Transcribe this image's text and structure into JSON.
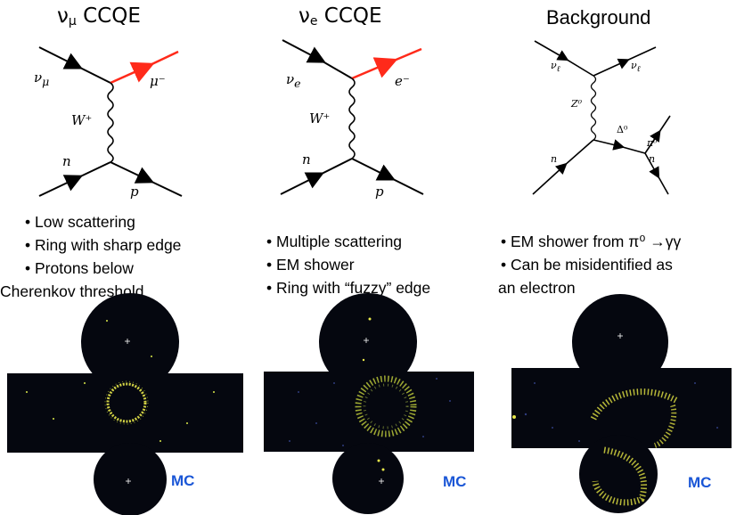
{
  "panels": [
    {
      "title_main": "ν",
      "title_sub": "μ",
      "title_rest": " CCQE",
      "labels": {
        "in_lepton": "ν",
        "in_lepton_sub": "μ",
        "out_lepton": "μ⁻",
        "boson": "W⁺",
        "in_nucleon": "n",
        "out_nucleon": "p"
      },
      "bullets": [
        "Low scattering",
        "Ring with sharp edge",
        "Protons below",
        "Cherenkov threshold"
      ],
      "mc": "MC"
    },
    {
      "title_main": "ν",
      "title_sub": "e",
      "title_rest": " CCQE",
      "labels": {
        "in_lepton": "ν",
        "in_lepton_sub": "e",
        "out_lepton": "e⁻",
        "boson": "W⁺",
        "in_nucleon": "n",
        "out_nucleon": "p"
      },
      "bullets": [
        "Multiple scattering",
        "EM shower",
        "Ring with “fuzzy” edge"
      ],
      "mc": "MC"
    },
    {
      "title": "Background",
      "labels": {
        "in_lepton": "ν",
        "in_lepton_sub": "ℓ",
        "out_lepton": "ν",
        "out_lepton_sub": "ℓ",
        "boson": "Z⁰",
        "in_nucleon": "n",
        "delta": "Δ⁰",
        "pion": "π⁰",
        "out_nucleon": "n"
      },
      "bullets": [
        "EM shower from π⁰ →γγ",
        "Can be misidentified as",
        "an electron"
      ],
      "mc": "MC"
    }
  ],
  "colors": {
    "outgoing_lepton": "#ff2a1a",
    "ring_hits": "#e8e84a",
    "detector_bg": "#05070f",
    "mc_label": "#1a56d6"
  }
}
